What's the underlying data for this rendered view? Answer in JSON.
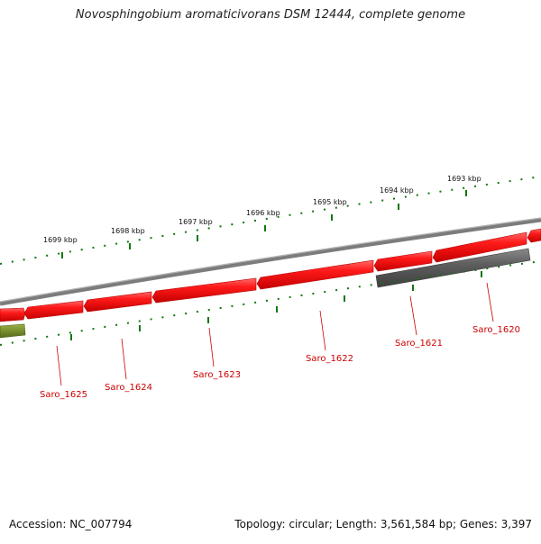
{
  "title": "Novosphingobium aromaticivorans DSM 12444, complete genome",
  "accession": "Accession: NC_007794",
  "summary": "Topology: circular; Length: 3,561,584 bp; Genes: 3,397",
  "colors": {
    "gene_red": "#e60000",
    "gene_grey": "#555555",
    "gene_olive": "#6b8e23",
    "backbone": "#888888",
    "tick_green": "#117711",
    "label_red": "#cc0000"
  },
  "scale_labels": [
    "1699 kbp",
    "1698 kbp",
    "1697 kbp",
    "1696 kbp",
    "1695 kbp",
    "1694 kbp",
    "1693 kbp"
  ],
  "gene_labels": [
    "Saro_1625",
    "Saro_1624",
    "Saro_1623",
    "Saro_1622",
    "Saro_1621",
    "Saro_1620"
  ]
}
